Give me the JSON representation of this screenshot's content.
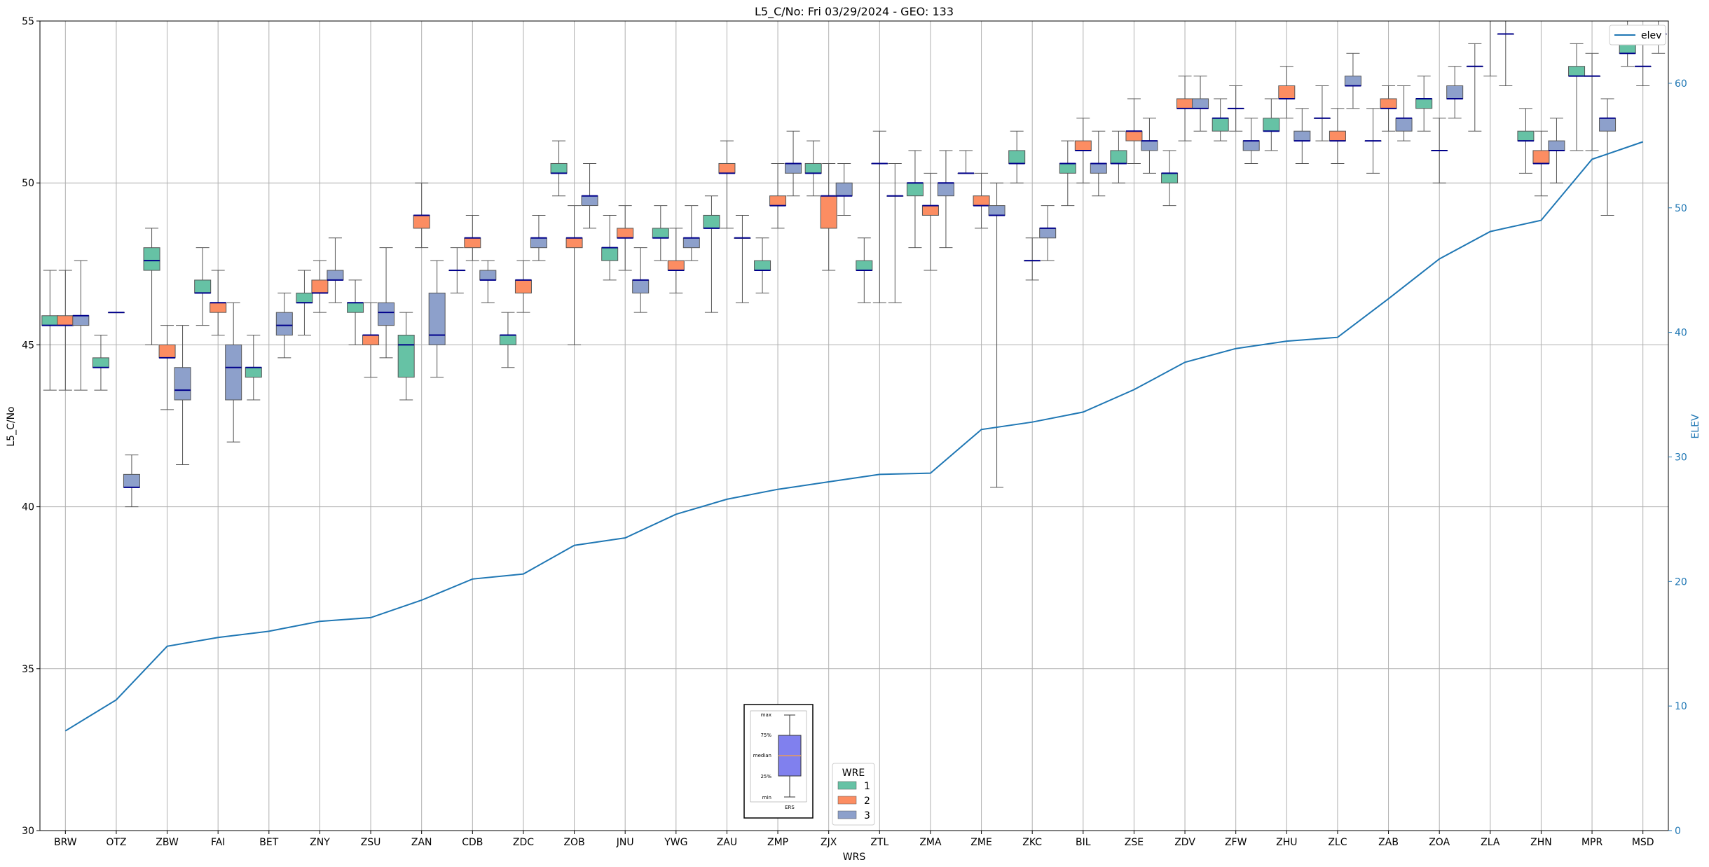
{
  "chart_data": {
    "type": "box",
    "title": "L5_C/No: Fri 03/29/2024 - GEO: 133",
    "xlabel": "WRS",
    "ylabel": "L5_C/No",
    "y2label": "ELEV",
    "ylim": [
      30,
      55
    ],
    "y2lim": [
      0,
      65
    ],
    "yticks": [
      30,
      35,
      40,
      45,
      50,
      55
    ],
    "y2ticks": [
      0,
      10,
      20,
      30,
      40,
      50,
      60
    ],
    "grid": true,
    "categories": [
      "BRW",
      "OTZ",
      "ZBW",
      "FAI",
      "BET",
      "ZNY",
      "ZSU",
      "ZAN",
      "CDB",
      "ZDC",
      "ZOB",
      "JNU",
      "YWG",
      "ZAU",
      "ZMP",
      "ZJX",
      "ZTL",
      "ZMA",
      "ZME",
      "ZKC",
      "BIL",
      "ZSE",
      "ZDV",
      "ZFW",
      "ZHU",
      "ZLC",
      "ZAB",
      "ZOA",
      "ZLA",
      "ZHN",
      "MPR",
      "MSD"
    ],
    "wre_colors": {
      "1": "#66c2a5",
      "2": "#fc8d62",
      "3": "#8da0cb"
    },
    "elev_color": "#1f77b4",
    "elev": [
      8.0,
      10.5,
      14.8,
      15.5,
      16.0,
      16.8,
      17.1,
      18.5,
      20.2,
      20.6,
      22.9,
      23.5,
      25.4,
      26.6,
      27.4,
      28.0,
      28.6,
      28.7,
      32.2,
      32.8,
      33.6,
      35.4,
      37.6,
      38.7,
      39.3,
      39.6,
      42.7,
      45.9,
      48.1,
      49.0,
      53.9,
      55.3
    ],
    "boxes": [
      {
        "station": "BRW",
        "wre": 1,
        "min": 43.6,
        "q1": 45.6,
        "median": 45.6,
        "q3": 45.9,
        "max": 47.3
      },
      {
        "station": "BRW",
        "wre": 2,
        "min": 43.6,
        "q1": 45.6,
        "median": 45.6,
        "q3": 45.9,
        "max": 47.3
      },
      {
        "station": "BRW",
        "wre": 3,
        "min": 43.6,
        "q1": 45.6,
        "median": 45.9,
        "q3": 45.9,
        "max": 47.6
      },
      {
        "station": "OTZ",
        "wre": 1,
        "min": 43.6,
        "q1": 44.3,
        "median": 44.3,
        "q3": 44.6,
        "max": 45.3
      },
      {
        "station": "OTZ",
        "wre": 2,
        "min": 46.0,
        "q1": 46.0,
        "median": 46.0,
        "q3": 46.0,
        "max": 46.0
      },
      {
        "station": "OTZ",
        "wre": 3,
        "min": 40.0,
        "q1": 40.6,
        "median": 40.6,
        "q3": 41.0,
        "max": 41.6
      },
      {
        "station": "ZBW",
        "wre": 1,
        "min": 45.0,
        "q1": 47.3,
        "median": 47.6,
        "q3": 48.0,
        "max": 48.6
      },
      {
        "station": "ZBW",
        "wre": 2,
        "min": 43.0,
        "q1": 44.6,
        "median": 44.6,
        "q3": 45.0,
        "max": 45.6
      },
      {
        "station": "ZBW",
        "wre": 3,
        "min": 41.3,
        "q1": 43.3,
        "median": 43.6,
        "q3": 44.3,
        "max": 45.6
      },
      {
        "station": "FAI",
        "wre": 1,
        "min": 45.6,
        "q1": 46.6,
        "median": 46.6,
        "q3": 47.0,
        "max": 48.0
      },
      {
        "station": "FAI",
        "wre": 2,
        "min": 45.3,
        "q1": 46.0,
        "median": 46.3,
        "q3": 46.3,
        "max": 47.3
      },
      {
        "station": "FAI",
        "wre": 3,
        "min": 42.0,
        "q1": 43.3,
        "median": 44.3,
        "q3": 45.0,
        "max": 46.3
      },
      {
        "station": "BET",
        "wre": 1,
        "min": 43.3,
        "q1": 44.0,
        "median": 44.3,
        "q3": 44.3,
        "max": 45.3
      },
      {
        "station": "BET",
        "wre": 3,
        "min": 44.6,
        "q1": 45.3,
        "median": 45.6,
        "q3": 46.0,
        "max": 46.6
      },
      {
        "station": "ZNY",
        "wre": 1,
        "min": 45.3,
        "q1": 46.3,
        "median": 46.3,
        "q3": 46.6,
        "max": 47.3
      },
      {
        "station": "ZNY",
        "wre": 2,
        "min": 46.0,
        "q1": 46.6,
        "median": 46.6,
        "q3": 47.0,
        "max": 47.6
      },
      {
        "station": "ZNY",
        "wre": 3,
        "min": 46.3,
        "q1": 47.0,
        "median": 47.0,
        "q3": 47.3,
        "max": 48.3
      },
      {
        "station": "ZSU",
        "wre": 1,
        "min": 45.0,
        "q1": 46.0,
        "median": 46.3,
        "q3": 46.3,
        "max": 47.0
      },
      {
        "station": "ZSU",
        "wre": 2,
        "min": 44.0,
        "q1": 45.0,
        "median": 45.3,
        "q3": 45.3,
        "max": 46.3
      },
      {
        "station": "ZSU",
        "wre": 3,
        "min": 44.6,
        "q1": 45.6,
        "median": 46.0,
        "q3": 46.3,
        "max": 48.0
      },
      {
        "station": "ZAN",
        "wre": 1,
        "min": 43.3,
        "q1": 44.0,
        "median": 45.0,
        "q3": 45.3,
        "max": 46.0
      },
      {
        "station": "ZAN",
        "wre": 2,
        "min": 48.0,
        "q1": 48.6,
        "median": 49.0,
        "q3": 49.0,
        "max": 50.0
      },
      {
        "station": "ZAN",
        "wre": 3,
        "min": 44.0,
        "q1": 45.0,
        "median": 45.3,
        "q3": 46.6,
        "max": 47.6
      },
      {
        "station": "CDB",
        "wre": 1,
        "min": 46.6,
        "q1": 47.3,
        "median": 47.3,
        "q3": 47.3,
        "max": 48.0
      },
      {
        "station": "CDB",
        "wre": 2,
        "min": 47.6,
        "q1": 48.0,
        "median": 48.3,
        "q3": 48.3,
        "max": 49.0
      },
      {
        "station": "CDB",
        "wre": 3,
        "min": 46.3,
        "q1": 47.0,
        "median": 47.0,
        "q3": 47.3,
        "max": 47.6
      },
      {
        "station": "ZDC",
        "wre": 1,
        "min": 44.3,
        "q1": 45.0,
        "median": 45.3,
        "q3": 45.3,
        "max": 46.0
      },
      {
        "station": "ZDC",
        "wre": 2,
        "min": 46.0,
        "q1": 46.6,
        "median": 47.0,
        "q3": 47.0,
        "max": 47.6
      },
      {
        "station": "ZDC",
        "wre": 3,
        "min": 47.6,
        "q1": 48.0,
        "median": 48.3,
        "q3": 48.3,
        "max": 49.0
      },
      {
        "station": "ZOB",
        "wre": 1,
        "min": 49.6,
        "q1": 50.3,
        "median": 50.3,
        "q3": 50.6,
        "max": 51.3
      },
      {
        "station": "ZOB",
        "wre": 2,
        "min": 45.0,
        "q1": 48.0,
        "median": 48.3,
        "q3": 48.3,
        "max": 49.3
      },
      {
        "station": "ZOB",
        "wre": 3,
        "min": 48.6,
        "q1": 49.3,
        "median": 49.6,
        "q3": 49.6,
        "max": 50.6
      },
      {
        "station": "JNU",
        "wre": 1,
        "min": 47.0,
        "q1": 47.6,
        "median": 48.0,
        "q3": 48.0,
        "max": 49.0
      },
      {
        "station": "JNU",
        "wre": 2,
        "min": 47.3,
        "q1": 48.3,
        "median": 48.3,
        "q3": 48.6,
        "max": 49.3
      },
      {
        "station": "JNU",
        "wre": 3,
        "min": 46.0,
        "q1": 46.6,
        "median": 47.0,
        "q3": 47.0,
        "max": 48.0
      },
      {
        "station": "YWG",
        "wre": 1,
        "min": 47.6,
        "q1": 48.3,
        "median": 48.3,
        "q3": 48.6,
        "max": 49.3
      },
      {
        "station": "YWG",
        "wre": 2,
        "min": 46.6,
        "q1": 47.3,
        "median": 47.3,
        "q3": 47.6,
        "max": 48.6
      },
      {
        "station": "YWG",
        "wre": 3,
        "min": 47.6,
        "q1": 48.0,
        "median": 48.3,
        "q3": 48.3,
        "max": 49.3
      },
      {
        "station": "ZAU",
        "wre": 1,
        "min": 46.0,
        "q1": 48.6,
        "median": 48.6,
        "q3": 49.0,
        "max": 49.6
      },
      {
        "station": "ZAU",
        "wre": 2,
        "min": 48.6,
        "q1": 50.3,
        "median": 50.3,
        "q3": 50.6,
        "max": 51.3
      },
      {
        "station": "ZAU",
        "wre": 3,
        "min": 46.3,
        "q1": 48.3,
        "median": 48.3,
        "q3": 48.3,
        "max": 49.0
      },
      {
        "station": "ZMP",
        "wre": 1,
        "min": 46.6,
        "q1": 47.3,
        "median": 47.3,
        "q3": 47.6,
        "max": 48.3
      },
      {
        "station": "ZMP",
        "wre": 2,
        "min": 48.6,
        "q1": 49.3,
        "median": 49.3,
        "q3": 49.6,
        "max": 50.6
      },
      {
        "station": "ZMP",
        "wre": 3,
        "min": 49.6,
        "q1": 50.3,
        "median": 50.6,
        "q3": 50.6,
        "max": 51.6
      },
      {
        "station": "ZJX",
        "wre": 1,
        "min": 49.6,
        "q1": 50.3,
        "median": 50.3,
        "q3": 50.6,
        "max": 51.3
      },
      {
        "station": "ZJX",
        "wre": 2,
        "min": 47.3,
        "q1": 48.6,
        "median": 49.6,
        "q3": 49.6,
        "max": 50.6
      },
      {
        "station": "ZJX",
        "wre": 3,
        "min": 49.0,
        "q1": 49.6,
        "median": 49.6,
        "q3": 50.0,
        "max": 50.6
      },
      {
        "station": "ZTL",
        "wre": 1,
        "min": 46.3,
        "q1": 47.3,
        "median": 47.3,
        "q3": 47.6,
        "max": 48.3
      },
      {
        "station": "ZTL",
        "wre": 2,
        "min": 46.3,
        "q1": 50.6,
        "median": 50.6,
        "q3": 50.6,
        "max": 51.6
      },
      {
        "station": "ZTL",
        "wre": 3,
        "min": 46.3,
        "q1": 49.6,
        "median": 49.6,
        "q3": 49.6,
        "max": 50.6
      },
      {
        "station": "ZMA",
        "wre": 1,
        "min": 48.0,
        "q1": 49.6,
        "median": 50.0,
        "q3": 50.0,
        "max": 51.0
      },
      {
        "station": "ZMA",
        "wre": 2,
        "min": 47.3,
        "q1": 49.0,
        "median": 49.3,
        "q3": 49.3,
        "max": 50.3
      },
      {
        "station": "ZMA",
        "wre": 3,
        "min": 48.0,
        "q1": 49.6,
        "median": 50.0,
        "q3": 50.0,
        "max": 51.0
      },
      {
        "station": "ZME",
        "wre": 1,
        "min": 50.3,
        "q1": 50.3,
        "median": 50.3,
        "q3": 50.3,
        "max": 51.0
      },
      {
        "station": "ZME",
        "wre": 2,
        "min": 48.6,
        "q1": 49.3,
        "median": 49.3,
        "q3": 49.6,
        "max": 50.3
      },
      {
        "station": "ZME",
        "wre": 3,
        "min": 40.6,
        "q1": 49.0,
        "median": 49.0,
        "q3": 49.3,
        "max": 50.0
      },
      {
        "station": "ZKC",
        "wre": 1,
        "min": 50.0,
        "q1": 50.6,
        "median": 50.6,
        "q3": 51.0,
        "max": 51.6
      },
      {
        "station": "ZKC",
        "wre": 2,
        "min": 47.0,
        "q1": 47.6,
        "median": 47.6,
        "q3": 47.6,
        "max": 48.3
      },
      {
        "station": "ZKC",
        "wre": 3,
        "min": 47.6,
        "q1": 48.3,
        "median": 48.6,
        "q3": 48.6,
        "max": 49.3
      },
      {
        "station": "BIL",
        "wre": 1,
        "min": 49.3,
        "q1": 50.3,
        "median": 50.6,
        "q3": 50.6,
        "max": 51.3
      },
      {
        "station": "BIL",
        "wre": 2,
        "min": 50.0,
        "q1": 51.0,
        "median": 51.0,
        "q3": 51.3,
        "max": 52.0
      },
      {
        "station": "BIL",
        "wre": 3,
        "min": 49.6,
        "q1": 50.3,
        "median": 50.6,
        "q3": 50.6,
        "max": 51.6
      },
      {
        "station": "ZSE",
        "wre": 1,
        "min": 50.0,
        "q1": 50.6,
        "median": 50.6,
        "q3": 51.0,
        "max": 51.6
      },
      {
        "station": "ZSE",
        "wre": 2,
        "min": 50.6,
        "q1": 51.3,
        "median": 51.6,
        "q3": 51.6,
        "max": 52.6
      },
      {
        "station": "ZSE",
        "wre": 3,
        "min": 50.3,
        "q1": 51.0,
        "median": 51.3,
        "q3": 51.3,
        "max": 52.0
      },
      {
        "station": "ZDV",
        "wre": 1,
        "min": 49.3,
        "q1": 50.0,
        "median": 50.3,
        "q3": 50.3,
        "max": 51.0
      },
      {
        "station": "ZDV",
        "wre": 2,
        "min": 51.3,
        "q1": 52.3,
        "median": 52.3,
        "q3": 52.6,
        "max": 53.3
      },
      {
        "station": "ZDV",
        "wre": 3,
        "min": 51.6,
        "q1": 52.3,
        "median": 52.3,
        "q3": 52.6,
        "max": 53.3
      },
      {
        "station": "ZFW",
        "wre": 1,
        "min": 51.3,
        "q1": 51.6,
        "median": 52.0,
        "q3": 52.0,
        "max": 52.6
      },
      {
        "station": "ZFW",
        "wre": 2,
        "min": 51.6,
        "q1": 52.3,
        "median": 52.3,
        "q3": 52.3,
        "max": 53.0
      },
      {
        "station": "ZFW",
        "wre": 3,
        "min": 50.6,
        "q1": 51.0,
        "median": 51.3,
        "q3": 51.3,
        "max": 52.0
      },
      {
        "station": "ZHU",
        "wre": 1,
        "min": 51.0,
        "q1": 51.6,
        "median": 51.6,
        "q3": 52.0,
        "max": 52.6
      },
      {
        "station": "ZHU",
        "wre": 2,
        "min": 52.0,
        "q1": 52.6,
        "median": 52.6,
        "q3": 53.0,
        "max": 53.6
      },
      {
        "station": "ZHU",
        "wre": 3,
        "min": 50.6,
        "q1": 51.3,
        "median": 51.3,
        "q3": 51.6,
        "max": 52.3
      },
      {
        "station": "ZLC",
        "wre": 1,
        "min": 51.3,
        "q1": 52.0,
        "median": 52.0,
        "q3": 52.0,
        "max": 53.0
      },
      {
        "station": "ZLC",
        "wre": 2,
        "min": 50.6,
        "q1": 51.3,
        "median": 51.3,
        "q3": 51.6,
        "max": 52.3
      },
      {
        "station": "ZLC",
        "wre": 3,
        "min": 52.3,
        "q1": 53.0,
        "median": 53.0,
        "q3": 53.3,
        "max": 54.0
      },
      {
        "station": "ZAB",
        "wre": 1,
        "min": 50.3,
        "q1": 51.3,
        "median": 51.3,
        "q3": 51.3,
        "max": 52.3
      },
      {
        "station": "ZAB",
        "wre": 2,
        "min": 51.6,
        "q1": 52.3,
        "median": 52.3,
        "q3": 52.6,
        "max": 53.0
      },
      {
        "station": "ZAB",
        "wre": 3,
        "min": 51.3,
        "q1": 51.6,
        "median": 52.0,
        "q3": 52.0,
        "max": 53.0
      },
      {
        "station": "ZOA",
        "wre": 1,
        "min": 51.6,
        "q1": 52.3,
        "median": 52.6,
        "q3": 52.6,
        "max": 53.3
      },
      {
        "station": "ZOA",
        "wre": 2,
        "min": 50.0,
        "q1": 51.0,
        "median": 51.0,
        "q3": 51.0,
        "max": 52.0
      },
      {
        "station": "ZOA",
        "wre": 3,
        "min": 52.0,
        "q1": 52.6,
        "median": 52.6,
        "q3": 53.0,
        "max": 53.6
      },
      {
        "station": "ZLA",
        "wre": 1,
        "min": 51.6,
        "q1": 53.6,
        "median": 53.6,
        "q3": 53.6,
        "max": 54.3
      },
      {
        "station": "ZLA",
        "wre": 2,
        "min": 53.3,
        "q1": 55.0,
        "median": 55.3,
        "q3": 55.6,
        "max": 56.0
      },
      {
        "station": "ZLA",
        "wre": 3,
        "min": 53.0,
        "q1": 54.6,
        "median": 54.6,
        "q3": 54.6,
        "max": 55.3
      },
      {
        "station": "ZHN",
        "wre": 1,
        "min": 50.3,
        "q1": 51.3,
        "median": 51.3,
        "q3": 51.6,
        "max": 52.3
      },
      {
        "station": "ZHN",
        "wre": 2,
        "min": 49.6,
        "q1": 50.6,
        "median": 50.6,
        "q3": 51.0,
        "max": 51.6
      },
      {
        "station": "ZHN",
        "wre": 3,
        "min": 50.0,
        "q1": 51.0,
        "median": 51.0,
        "q3": 51.3,
        "max": 52.0
      },
      {
        "station": "MPR",
        "wre": 1,
        "min": 51.0,
        "q1": 53.3,
        "median": 53.3,
        "q3": 53.6,
        "max": 54.3
      },
      {
        "station": "MPR",
        "wre": 2,
        "min": 51.0,
        "q1": 53.3,
        "median": 53.3,
        "q3": 53.3,
        "max": 54.0
      },
      {
        "station": "MPR",
        "wre": 3,
        "min": 49.0,
        "q1": 51.6,
        "median": 52.0,
        "q3": 52.0,
        "max": 52.6
      },
      {
        "station": "MSD",
        "wre": 1,
        "min": 53.6,
        "q1": 54.0,
        "median": 54.0,
        "q3": 54.3,
        "max": 55.0
      },
      {
        "station": "MSD",
        "wre": 2,
        "min": 53.0,
        "q1": 53.6,
        "median": 53.6,
        "q3": 53.6,
        "max": 54.6
      },
      {
        "station": "MSD",
        "wre": 3,
        "min": 54.0,
        "q1": 54.6,
        "median": 54.6,
        "q3": 54.6,
        "max": 55.3
      }
    ],
    "legend": {
      "elev_label": "elev",
      "wre_title": "WRE",
      "wre_entries": [
        "1",
        "2",
        "3"
      ],
      "placement": "elev top-right; WRE bottom-center"
    },
    "key_box": {
      "labels": [
        "max",
        "75%",
        "median",
        "25%",
        "min"
      ],
      "caption": "ERS"
    }
  }
}
